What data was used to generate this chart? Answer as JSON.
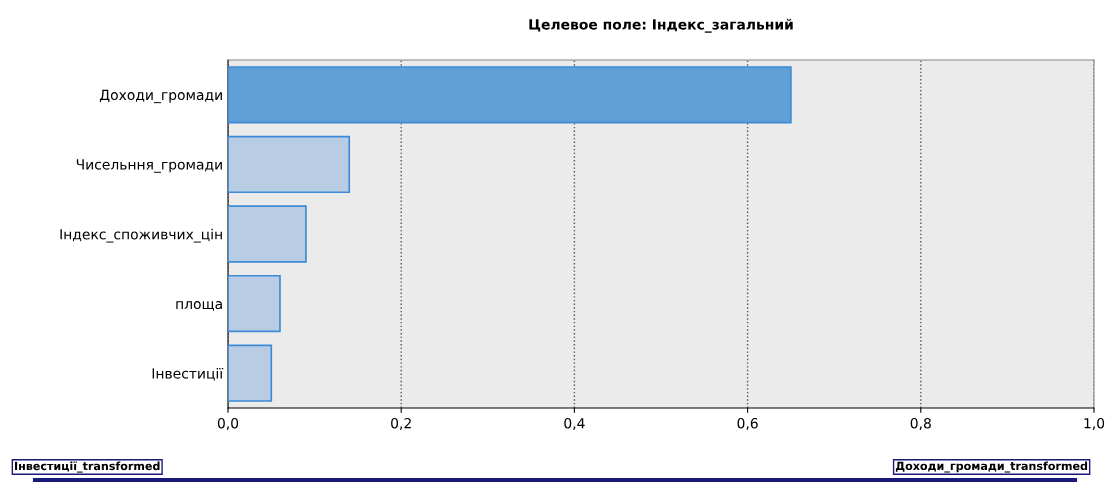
{
  "chart_data": {
    "type": "bar",
    "orientation": "horizontal",
    "title": "Целевое поле: Індекс_загальний",
    "categories": [
      "Доходи_громади",
      "Чисельння_громади",
      "Індекс_споживчих_цін",
      "площа",
      "Інвестиції"
    ],
    "values": [
      0.65,
      0.14,
      0.09,
      0.06,
      0.05
    ],
    "colors": [
      "#619fd7",
      "#b8cde4",
      "#b8cde4",
      "#b8cde4",
      "#b8cde4"
    ],
    "xlim": [
      0,
      1.0
    ],
    "xticks": [
      {
        "value": 0,
        "label": "0,0"
      },
      {
        "value": 0.2,
        "label": "0,2"
      },
      {
        "value": 0.4,
        "label": "0,4"
      },
      {
        "value": 0.6,
        "label": "0,6"
      },
      {
        "value": 0.8,
        "label": "0,8"
      },
      {
        "value": 1.0,
        "label": "1,0"
      }
    ],
    "grid": "x",
    "legend": false,
    "annotations": [
      "Інвестиції_transformed",
      "Доходи_громади_transformed"
    ]
  }
}
